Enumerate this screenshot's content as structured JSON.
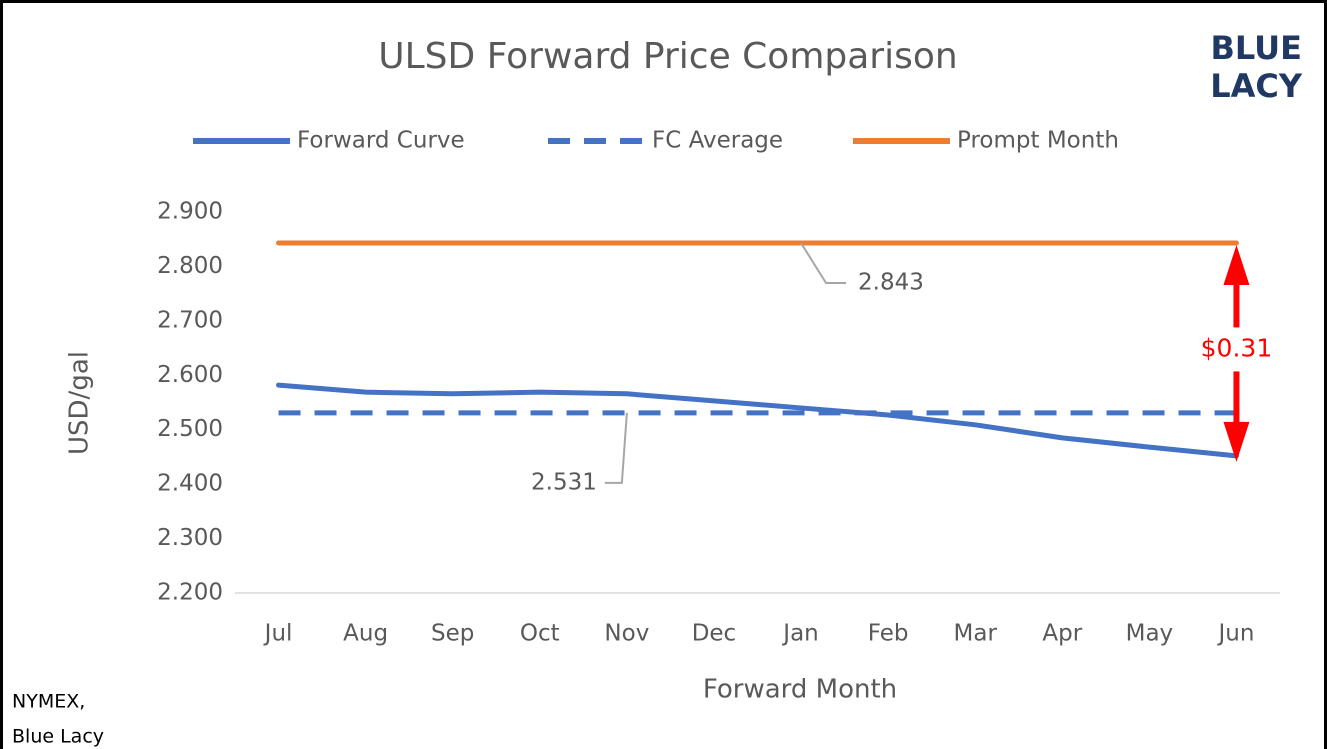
{
  "chart_data": {
    "type": "line",
    "title": "ULSD Forward Price Comparison",
    "logo": [
      "BLUE",
      "LACY"
    ],
    "y_label": "USD/gal",
    "x_label": "Forward Month",
    "source": [
      "NYMEX,",
      "Blue Lacy"
    ],
    "annotation": "$0.31",
    "categories": [
      "Jul",
      "Aug",
      "Sep",
      "Oct",
      "Nov",
      "Dec",
      "Jan",
      "Feb",
      "Mar",
      "Apr",
      "May",
      "Jun"
    ],
    "series": [
      {
        "name": "Forward Curve",
        "color": "#4472c4",
        "dash": false,
        "values": [
          2.582,
          2.569,
          2.566,
          2.569,
          2.566,
          2.553,
          2.54,
          2.527,
          2.509,
          2.485,
          2.468,
          2.452
        ]
      },
      {
        "name": "FC Average",
        "color": "#4472c4",
        "dash": true,
        "values": [
          2.531,
          2.531,
          2.531,
          2.531,
          2.531,
          2.531,
          2.531,
          2.531,
          2.531,
          2.531,
          2.531,
          2.531
        ]
      },
      {
        "name": "Prompt Month",
        "color": "#ed7d31",
        "dash": false,
        "values": [
          2.843,
          2.843,
          2.843,
          2.843,
          2.843,
          2.843,
          2.843,
          2.843,
          2.843,
          2.843,
          2.843,
          2.843
        ]
      }
    ],
    "ylim": [
      2.2,
      2.9
    ],
    "yticks": [
      {
        "value": 2.2,
        "label": "2.200"
      },
      {
        "value": 2.3,
        "label": "2.300"
      },
      {
        "value": 2.4,
        "label": "2.400"
      },
      {
        "value": 2.5,
        "label": "2.500"
      },
      {
        "value": 2.6,
        "label": "2.600"
      },
      {
        "value": 2.7,
        "label": "2.700"
      },
      {
        "value": 2.8,
        "label": "2.800"
      },
      {
        "value": 2.9,
        "label": "2.900"
      }
    ],
    "grid": false,
    "legend": "top"
  }
}
